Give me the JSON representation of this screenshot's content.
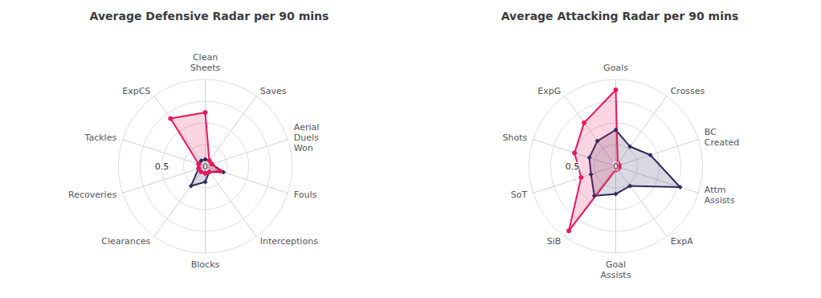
{
  "chart_data": [
    {
      "type": "radar",
      "title": "Average Defensive Radar per 90 mins",
      "categories": [
        "Clean\nSheets",
        "ExpCS",
        "Tackles",
        "Recoveries",
        "Clearances",
        "Blocks",
        "Interceptions",
        "Fouls",
        "Aerial\nDuels\nWon",
        "Saves"
      ],
      "series": [
        {
          "color": "#2D2B5E",
          "marker": "diamond",
          "values": [
            0.08,
            0.08,
            0.08,
            0.08,
            0.28,
            0.18,
            0.08,
            0.22,
            0.08,
            0.08
          ]
        },
        {
          "color": "#E8185A",
          "marker": "circle",
          "values": [
            0.62,
            0.68,
            0.08,
            0.08,
            0.08,
            0.08,
            0.08,
            0.18,
            0.08,
            0.08
          ]
        }
      ],
      "ylim": [
        0,
        1
      ],
      "yticks": [
        0.25,
        0.5,
        0.75,
        1
      ],
      "tick_labels": false,
      "grid": true,
      "annotations": [
        {
          "text": "0.5",
          "value": 0.5
        },
        {
          "text": "0",
          "value": 0
        }
      ]
    },
    {
      "type": "radar",
      "title": "Average Attacking Radar per 90 mins",
      "categories": [
        "Goals",
        "ExpG",
        "Shots",
        "SoT",
        "SiB",
        "Goal\nAssists",
        "ExpA",
        "Attm\nAssists",
        "BC\nCreated",
        "Crosses"
      ],
      "series": [
        {
          "color": "#2D2B5E",
          "marker": "diamond",
          "values": [
            0.42,
            0.36,
            0.32,
            0.3,
            0.42,
            0.32,
            0.28,
            0.78,
            0.42,
            0.28
          ]
        },
        {
          "color": "#E8185A",
          "marker": "circle",
          "values": [
            0.88,
            0.62,
            0.5,
            0.42,
            0.92,
            0.04,
            0.04,
            0.04,
            0.04,
            0.04
          ]
        }
      ],
      "ylim": [
        0,
        1
      ],
      "yticks": [
        0.25,
        0.5,
        0.75,
        1
      ],
      "tick_labels": false,
      "grid": true,
      "annotations": [
        {
          "text": "0.5",
          "value": 0.5
        },
        {
          "text": "0",
          "value": 0
        }
      ]
    }
  ]
}
